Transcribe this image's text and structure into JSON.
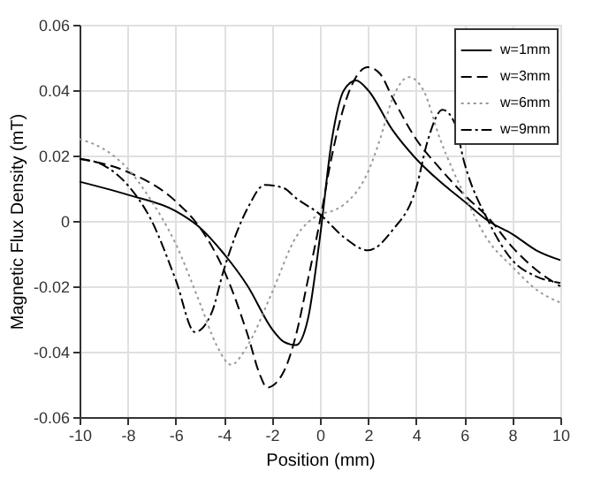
{
  "chart_data": {
    "type": "line",
    "xlabel": "Position (mm)",
    "ylabel": "Magnetic Flux Density (mT)",
    "xlim": [
      -10,
      10
    ],
    "xticks": [
      -10,
      -8,
      -6,
      -4,
      -2,
      0,
      2,
      4,
      6,
      8,
      10
    ],
    "ylim": [
      -0.06,
      0.06
    ],
    "yticks": [
      {
        "value": -0.06,
        "label": "-0.06"
      },
      {
        "value": -0.04,
        "label": "-0.04"
      },
      {
        "value": -0.02,
        "label": "-0.02"
      },
      0,
      {
        "value": 0.02,
        "label": "0.02"
      },
      {
        "value": 0.04,
        "label": "0.04"
      },
      {
        "value": 0.06,
        "label": "0.06"
      }
    ],
    "grid": true,
    "legend": "top right",
    "marker": "none",
    "series": [
      {
        "name": "w=1mm",
        "color": "#000000",
        "line_style": "solid",
        "x": [
          -10,
          -8,
          -6,
          -5,
          -4,
          -3,
          -2,
          -1.5,
          -1,
          -0.5,
          0,
          0.5,
          1,
          1.5,
          2,
          3,
          4,
          5,
          6,
          7,
          8,
          9,
          10
        ],
        "values": [
          0.012,
          0.008,
          0.003,
          -0.002,
          -0.01,
          -0.02,
          -0.033,
          -0.037,
          -0.038,
          -0.03,
          -0.005,
          0.025,
          0.04,
          0.043,
          0.04,
          0.028,
          0.019,
          0.012,
          0.006,
          0.0,
          -0.004,
          -0.009,
          -0.012
        ]
      },
      {
        "name": "w=3mm",
        "color": "#000000",
        "line_style": "dashed",
        "x": [
          -10,
          -8,
          -6,
          -5,
          -4,
          -3,
          -2.5,
          -2.2,
          -1.5,
          -1,
          -0.5,
          0,
          0.5,
          1,
          1.5,
          2,
          2.5,
          3,
          4,
          5,
          6,
          7,
          8,
          9,
          10
        ],
        "values": [
          0.019,
          0.015,
          0.006,
          -0.002,
          -0.015,
          -0.035,
          -0.047,
          -0.051,
          -0.046,
          -0.035,
          -0.018,
          0.0,
          0.02,
          0.035,
          0.044,
          0.047,
          0.045,
          0.038,
          0.025,
          0.016,
          0.008,
          0.001,
          -0.008,
          -0.015,
          -0.02
        ]
      },
      {
        "name": "w=6mm",
        "color": "#999999",
        "line_style": "dotted",
        "x": [
          -10,
          -9,
          -8,
          -7,
          -6,
          -5,
          -4.3,
          -3.7,
          -3,
          -2,
          -1,
          0,
          0.5,
          1,
          2,
          2.5,
          3,
          3.7,
          4.3,
          5,
          6,
          7,
          8,
          9,
          10
        ],
        "values": [
          0.025,
          0.022,
          0.016,
          0.006,
          -0.007,
          -0.025,
          -0.038,
          -0.044,
          -0.038,
          -0.022,
          -0.005,
          0.002,
          0.003,
          0.005,
          0.015,
          0.025,
          0.037,
          0.044,
          0.04,
          0.025,
          0.008,
          -0.006,
          -0.014,
          -0.021,
          -0.025
        ]
      },
      {
        "name": "w=9mm",
        "color": "#000000",
        "line_style": "dashdot",
        "x": [
          -10,
          -9,
          -8,
          -7,
          -6,
          -5.2,
          -4.5,
          -4,
          -3,
          -2.3,
          -1.5,
          -1,
          0,
          1,
          2,
          3,
          4,
          4.5,
          5.1,
          5.6,
          6,
          7,
          8,
          9,
          10
        ],
        "values": [
          0.019,
          0.017,
          0.011,
          0.0,
          -0.018,
          -0.034,
          -0.028,
          -0.015,
          0.004,
          0.011,
          0.01,
          0.007,
          0.002,
          -0.005,
          -0.009,
          -0.003,
          0.01,
          0.025,
          0.034,
          0.03,
          0.018,
          0.0,
          -0.012,
          -0.017,
          -0.019
        ]
      }
    ]
  }
}
